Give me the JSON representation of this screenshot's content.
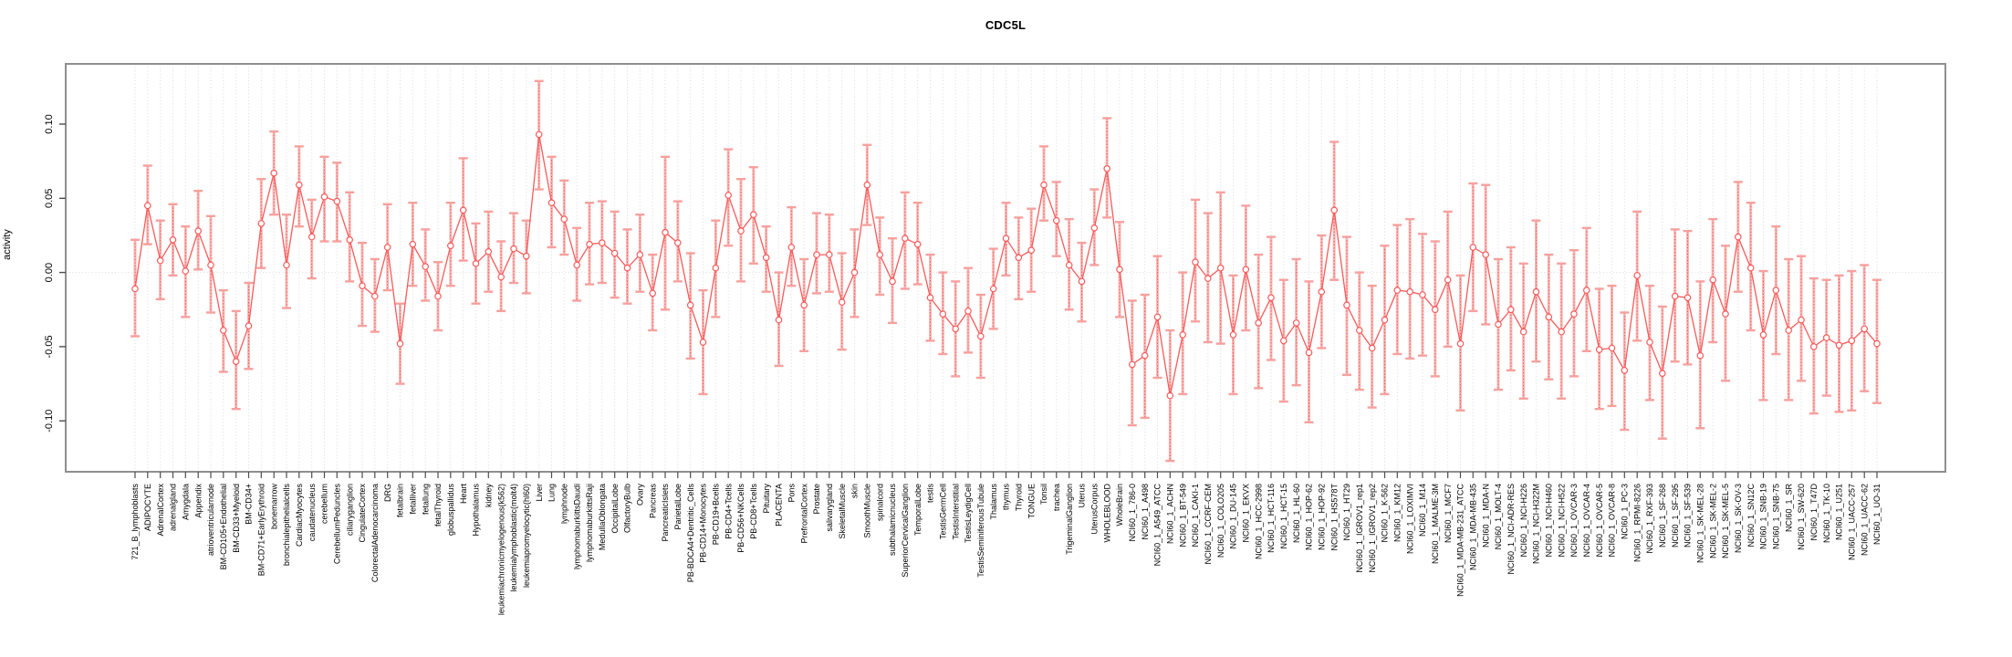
{
  "figure": {
    "title": "CDC5L",
    "ylabel": "activity"
  },
  "chart_data": {
    "type": "line",
    "subtype": "point-with-error-bars",
    "title": "CDC5L",
    "xlabel": "",
    "ylabel": "activity",
    "ylim": [
      -0.134,
      0.141
    ],
    "yticks": [
      -0.1,
      -0.05,
      0.0,
      0.05,
      0.1
    ],
    "ytick_labels": [
      "-0.10",
      "-0.05",
      "0.00",
      "0.05",
      "0.10"
    ],
    "grid": "vertical-dotted-per-category",
    "zero_line": true,
    "legend": "none",
    "colors": {
      "line": "#F85A5A",
      "marker": "#F85A5A",
      "errorbar": "#F6A19E",
      "grid": "#DADADA",
      "frame": "#8F8F8F"
    },
    "categories": [
      "721_B_lymphoblasts",
      "ADIPOCYTE",
      "AdrenalCortex",
      "adrenalgland",
      "Amygdala",
      "Appendix",
      "atrioventricularnode",
      "BM-CD105+Endothelial",
      "BM-CD33+Myeloid",
      "BM-CD34+",
      "BM-CD71+EarlyErythroid",
      "bonemarrow",
      "bronchialepithelialcells",
      "CardiacMyocytes",
      "caudatenucleus",
      "cerebellum",
      "CerebellumPeduncles",
      "ciliaryganglion",
      "CingulateCortex",
      "ColorectalAdenocarcinoma",
      "DRG",
      "fetalbrain",
      "fetalliver",
      "fetallung",
      "fetalThyroid",
      "globuspallidus",
      "Heart",
      "Hypothalamus",
      "kidney",
      "leukemiachronicmyelogenous(k562)",
      "leukemialymphoblastic(molt4)",
      "leukemiapromyelocytic(hl60)",
      "Liver",
      "Lung",
      "lymphnode",
      "lymphomaburkittsDaudi",
      "lymphomaburkittsRaji",
      "MedullaOblongata",
      "OccipitalLobe",
      "OlfactoryBulb",
      "Ovary",
      "Pancreas",
      "PancreaticIslets",
      "ParietalLobe",
      "PB-BDCA4+Dentritic_Cells",
      "PB-CD14+Monocytes",
      "PB-CD19+Bcells",
      "PB-CD4+Tcells",
      "PB-CD56+NKCells",
      "PB-CD8+Tcells",
      "Pituitary",
      "PLACENTA",
      "Pons",
      "PrefrontalCortex",
      "Prostate",
      "salivarygland",
      "SkeletalMuscle",
      "skin",
      "SmoothMuscle",
      "spinalcord",
      "subthalamicnucleus",
      "SuperiorCervicalGanglion",
      "TemporalLobe",
      "testis",
      "TestisGermCell",
      "TestisInterstitial",
      "TestisLeydigCell",
      "TestisSeminiferousTubule",
      "Thalamus",
      "thymus",
      "Thyroid",
      "TONGUE",
      "Tonsil",
      "trachea",
      "TrigeminalGanglion",
      "Uterus",
      "UterusCorpus",
      "WHOLEBLOOD",
      "WholeBrain",
      "NCI60_1_786-0",
      "NCI60_1_A498",
      "NCI60_1_A549_ATCC",
      "NCI60_1_ACHN",
      "NCI60_1_BT-549",
      "NCI60_1_CAKI-1",
      "NCI60_1_CCRF-CEM",
      "NCI60_1_COLO205",
      "NCI60_1_DU-145",
      "NCI60_1_EKVX",
      "NCI60_1_HCC-2998",
      "NCI60_1_HCT-116",
      "NCI60_1_HCT-15",
      "NCI60_1_HL-60",
      "NCI60_1_HOP-62",
      "NCI60_1_HOP-92",
      "NCI60_1_HS578T",
      "NCI60_1_HT29",
      "NCI60_1_IGROV1_rep1",
      "NCI60_1_IGROV1_rep2",
      "NCI60_1_K-562",
      "NCI60_1_KM12",
      "NCI60_1_LOXIMVI",
      "NCI60_1_M14",
      "NCI60_1_MALME-3M",
      "NCI60_1_MCF7",
      "NCI60_1_MDA-MB-231_ATCC",
      "NCI60_1_MDA-MB-435",
      "NCI60_1_MDA-N",
      "NCI60_1_MOLT-4",
      "NCI60_1_NCI-ADR-RES",
      "NCI60_1_NCI-H226",
      "NCI60_1_NCI-H322M",
      "NCI60_1_NCI-H460",
      "NCI60_1_NCI-H522",
      "NCI60_1_OVCAR-3",
      "NCI60_1_OVCAR-4",
      "NCI60_1_OVCAR-5",
      "NCI60_1_OVCAR-8",
      "NCI60_1_PC-3",
      "NCI60_1_RPMI-8226",
      "NCI60_1_RXF-393",
      "NCI60_1_SF-268",
      "NCI60_1_SF-295",
      "NCI60_1_SF-539",
      "NCI60_1_SK-MEL-28",
      "NCI60_1_SK-MEL-2",
      "NCI60_1_SK-MEL-5",
      "NCI60_1_SK-OV-3",
      "NCI60_1_SN12C",
      "NCI60_1_SNB-19",
      "NCI60_1_SNB-75",
      "NCI60_1_SR",
      "NCI60_1_SW-620",
      "NCI60_1_T47D",
      "NCI60_1_TK-10",
      "NCI60_1_U251",
      "NCI60_1_UACC-257",
      "NCI60_1_UACC-62",
      "NCI60_1_UO-31"
    ],
    "series": [
      {
        "name": "activity",
        "values": [
          -0.011,
          0.045,
          0.008,
          0.022,
          0.001,
          0.028,
          0.005,
          -0.039,
          -0.06,
          -0.036,
          0.033,
          0.067,
          0.005,
          0.059,
          0.024,
          0.051,
          0.048,
          0.022,
          -0.009,
          -0.016,
          0.017,
          -0.048,
          0.019,
          0.004,
          -0.016,
          0.018,
          0.042,
          0.006,
          0.014,
          -0.003,
          0.016,
          0.011,
          0.093,
          0.047,
          0.036,
          0.005,
          0.019,
          0.02,
          0.013,
          0.003,
          0.012,
          -0.014,
          0.027,
          0.02,
          -0.022,
          -0.047,
          0.003,
          0.052,
          0.028,
          0.039,
          0.01,
          -0.032,
          0.017,
          -0.022,
          0.012,
          0.012,
          -0.02,
          0.0,
          0.059,
          0.012,
          -0.006,
          0.023,
          0.019,
          -0.017,
          -0.028,
          -0.038,
          -0.026,
          -0.043,
          -0.011,
          0.023,
          0.01,
          0.015,
          0.059,
          0.035,
          0.005,
          -0.006,
          0.03,
          0.07,
          0.002,
          -0.062,
          -0.056,
          -0.03,
          -0.083,
          -0.042,
          0.007,
          -0.004,
          0.003,
          -0.042,
          0.002,
          -0.034,
          -0.017,
          -0.046,
          -0.034,
          -0.054,
          -0.013,
          0.042,
          -0.022,
          -0.039,
          -0.051,
          -0.032,
          -0.012,
          -0.013,
          -0.015,
          -0.025,
          -0.005,
          -0.048,
          0.017,
          0.012,
          -0.035,
          -0.025,
          -0.04,
          -0.013,
          -0.03,
          -0.04,
          -0.028,
          -0.012,
          -0.052,
          -0.051,
          -0.066,
          -0.002,
          -0.047,
          -0.068,
          -0.016,
          -0.017,
          -0.056,
          -0.005,
          -0.028,
          0.024,
          0.003,
          -0.042,
          -0.012,
          -0.039,
          -0.032,
          -0.05,
          -0.044,
          -0.049,
          -0.046,
          -0.038,
          -0.048
        ],
        "upper": [
          0.022,
          0.072,
          0.035,
          0.046,
          0.031,
          0.055,
          0.038,
          -0.012,
          -0.026,
          -0.007,
          0.063,
          0.095,
          0.039,
          0.085,
          0.049,
          0.078,
          0.074,
          0.054,
          0.02,
          0.009,
          0.046,
          -0.021,
          0.047,
          0.029,
          0.007,
          0.047,
          0.077,
          0.033,
          0.041,
          0.021,
          0.04,
          0.035,
          0.129,
          0.078,
          0.062,
          0.03,
          0.047,
          0.048,
          0.041,
          0.029,
          0.039,
          0.012,
          0.078,
          0.048,
          0.013,
          -0.012,
          0.035,
          0.083,
          0.063,
          0.071,
          0.031,
          0.0,
          0.044,
          0.009,
          0.04,
          0.039,
          0.013,
          0.029,
          0.086,
          0.037,
          0.023,
          0.054,
          0.047,
          0.012,
          0.0,
          -0.006,
          0.003,
          -0.015,
          0.016,
          0.047,
          0.037,
          0.043,
          0.085,
          0.061,
          0.036,
          0.02,
          0.056,
          0.104,
          0.034,
          -0.019,
          -0.015,
          0.011,
          -0.039,
          0.0,
          0.049,
          0.04,
          0.054,
          -0.002,
          0.045,
          0.012,
          0.024,
          -0.005,
          0.009,
          -0.006,
          0.025,
          0.088,
          0.024,
          0.0,
          -0.009,
          0.018,
          0.032,
          0.036,
          0.026,
          0.021,
          0.041,
          -0.002,
          0.06,
          0.059,
          0.009,
          0.017,
          0.006,
          0.035,
          0.012,
          0.006,
          0.015,
          0.03,
          -0.011,
          -0.009,
          -0.027,
          0.041,
          -0.009,
          -0.023,
          0.029,
          0.028,
          -0.006,
          0.036,
          0.018,
          0.061,
          0.047,
          0.001,
          0.031,
          0.009,
          0.011,
          -0.004,
          -0.005,
          -0.002,
          0.001,
          0.005,
          -0.005
        ],
        "lower": [
          -0.043,
          0.019,
          -0.018,
          -0.002,
          -0.03,
          0.002,
          -0.027,
          -0.067,
          -0.092,
          -0.065,
          0.003,
          0.039,
          -0.024,
          0.031,
          -0.004,
          0.021,
          0.021,
          -0.006,
          -0.036,
          -0.04,
          -0.012,
          -0.075,
          -0.009,
          -0.019,
          -0.039,
          -0.009,
          0.008,
          -0.021,
          -0.013,
          -0.026,
          -0.007,
          -0.014,
          0.056,
          0.017,
          0.012,
          -0.019,
          -0.008,
          -0.007,
          -0.017,
          -0.021,
          -0.013,
          -0.039,
          -0.025,
          -0.006,
          -0.058,
          -0.082,
          -0.03,
          0.018,
          -0.006,
          0.006,
          -0.013,
          -0.063,
          -0.009,
          -0.053,
          -0.014,
          -0.013,
          -0.052,
          -0.03,
          0.032,
          -0.015,
          -0.034,
          -0.011,
          -0.008,
          -0.046,
          -0.055,
          -0.07,
          -0.054,
          -0.071,
          -0.038,
          -0.002,
          -0.018,
          -0.013,
          0.035,
          0.011,
          -0.025,
          -0.033,
          0.005,
          0.037,
          -0.03,
          -0.103,
          -0.098,
          -0.071,
          -0.127,
          -0.082,
          -0.033,
          -0.047,
          -0.048,
          -0.082,
          -0.039,
          -0.078,
          -0.059,
          -0.087,
          -0.076,
          -0.101,
          -0.051,
          -0.005,
          -0.069,
          -0.079,
          -0.091,
          -0.082,
          -0.055,
          -0.058,
          -0.056,
          -0.07,
          -0.05,
          -0.093,
          -0.026,
          -0.035,
          -0.079,
          -0.066,
          -0.085,
          -0.06,
          -0.072,
          -0.085,
          -0.07,
          -0.053,
          -0.092,
          -0.09,
          -0.106,
          -0.046,
          -0.086,
          -0.112,
          -0.06,
          -0.062,
          -0.105,
          -0.047,
          -0.073,
          -0.013,
          -0.039,
          -0.086,
          -0.055,
          -0.086,
          -0.073,
          -0.095,
          -0.083,
          -0.094,
          -0.093,
          -0.08,
          -0.088
        ]
      }
    ]
  }
}
